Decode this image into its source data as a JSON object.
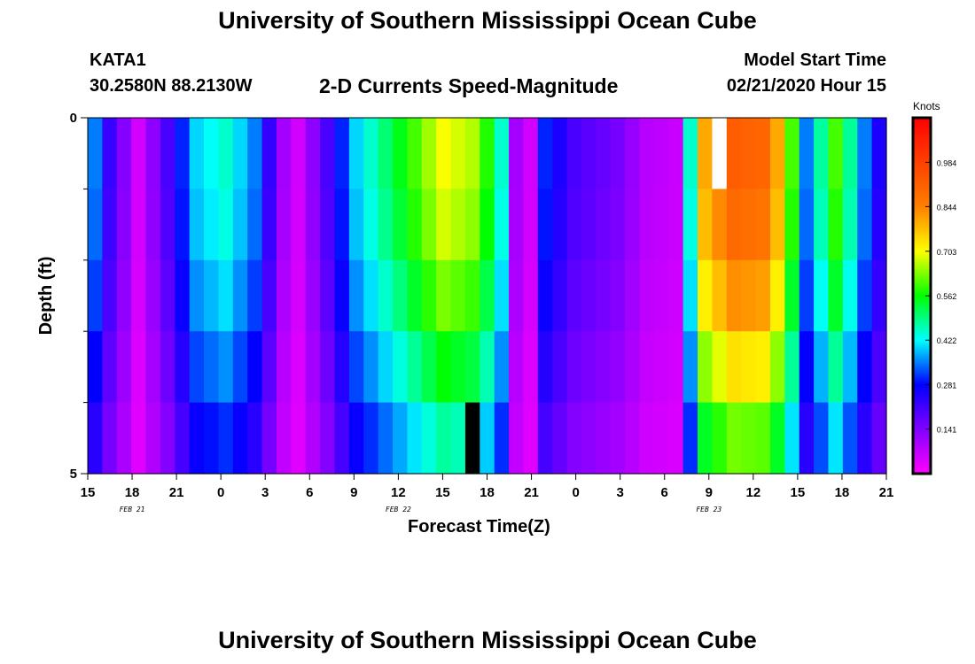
{
  "title_top": "University of Southern Mississippi Ocean Cube",
  "title_bottom": "University of Southern Mississippi Ocean Cube",
  "station": {
    "id": "KATA1",
    "coords": "30.2580N 88.2130W"
  },
  "subtitle": "2-D Currents Speed-Magnitude",
  "model_start": {
    "label": "Model Start Time",
    "value": "02/21/2020 Hour 15"
  },
  "chart_data": {
    "type": "heatmap",
    "title": "2-D Currents Speed-Magnitude",
    "xlabel": "Forecast Time(Z)",
    "ylabel": "Depth (ft)",
    "x_hours": {
      "start": "02/21/2020 15Z",
      "end": "02/23/2020 21Z",
      "step_hours": 1
    },
    "x_tick_labels": [
      "15",
      "18",
      "21",
      "0",
      "3",
      "6",
      "9",
      "12",
      "15",
      "18",
      "21",
      "0",
      "3",
      "6",
      "9",
      "12",
      "15",
      "18",
      "21"
    ],
    "date_labels": [
      {
        "label": "FEB 21",
        "at_tick": 1
      },
      {
        "label": "FEB 22",
        "at_tick": 7
      },
      {
        "label": "FEB 23",
        "at_tick": 14
      }
    ],
    "y_tick_labels": [
      "0",
      "5"
    ],
    "ylim": [
      0,
      5
    ],
    "depth_layers": 5,
    "colorbar": {
      "label": "Knots",
      "tick_labels": [
        "0.984",
        "0.844",
        "0.703",
        "0.562",
        "0.422",
        "0.281",
        "0.141"
      ],
      "range": [
        0,
        1.125
      ]
    },
    "key_times": [
      {
        "hour": 0,
        "speed": 0.35
      },
      {
        "hour": 1,
        "speed": 0.22
      },
      {
        "hour": 3,
        "speed": 0.05
      },
      {
        "hour": 5,
        "speed": 0.2
      },
      {
        "hour": 7,
        "speed": 0.4
      },
      {
        "hour": 9,
        "speed": 0.45
      },
      {
        "hour": 11,
        "speed": 0.35
      },
      {
        "hour": 13,
        "speed": 0.1
      },
      {
        "hour": 14,
        "speed": 0.05
      },
      {
        "hour": 16,
        "speed": 0.2
      },
      {
        "hour": 18,
        "speed": 0.4
      },
      {
        "hour": 20,
        "speed": 0.5
      },
      {
        "hour": 22,
        "speed": 0.6
      },
      {
        "hour": 24,
        "speed": 0.7
      },
      {
        "hour": 26,
        "speed": 0.66
      },
      {
        "hour": 27,
        "speed": 0.58
      },
      {
        "hour": 28,
        "speed": 0.45
      },
      {
        "hour": 29,
        "speed": 0.1
      },
      {
        "hour": 30,
        "speed": 0.05
      },
      {
        "hour": 31,
        "speed": 0.3
      },
      {
        "hour": 33,
        "speed": 0.2
      },
      {
        "hour": 36,
        "speed": 0.15
      },
      {
        "hour": 38,
        "speed": 0.08
      },
      {
        "hour": 40,
        "speed": 0.06
      },
      {
        "hour": 41,
        "speed": 0.45
      },
      {
        "hour": 42,
        "speed": 0.8
      },
      {
        "hour": 44,
        "speed": 0.92
      },
      {
        "hour": 46,
        "speed": 0.9
      },
      {
        "hour": 47,
        "speed": 0.8
      },
      {
        "hour": 48,
        "speed": 0.6
      },
      {
        "hour": 49,
        "speed": 0.35
      },
      {
        "hour": 51,
        "speed": 0.6
      },
      {
        "hour": 52,
        "speed": 0.48
      },
      {
        "hour": 53,
        "speed": 0.35
      },
      {
        "hour": 54,
        "speed": 0.25
      }
    ],
    "depth_factors": [
      1.0,
      0.97,
      0.9,
      0.8,
      0.68
    ],
    "missing_cells": [
      {
        "hour": 43,
        "layer": 0,
        "color": "#ffffff"
      },
      {
        "hour": 26,
        "layer": 4,
        "color": "#000000"
      }
    ],
    "grid": false
  }
}
